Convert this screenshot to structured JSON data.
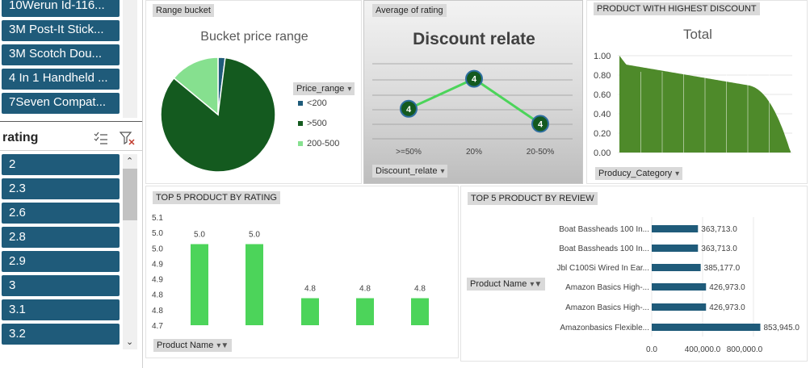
{
  "product_slicer": {
    "items": [
      "10Werun Id-116...",
      "3M Post-It Stick...",
      "3M Scotch Dou...",
      "4 In 1 Handheld ...",
      "7Seven Compat..."
    ]
  },
  "rating_slicer": {
    "title": "rating",
    "items": [
      "2",
      "2.3",
      "2.6",
      "2.8",
      "2.9",
      "3",
      "3.1",
      "3.2"
    ]
  },
  "filters": {
    "range_bucket": "Range bucket",
    "price_range": "Price_range",
    "average_rating": "Average of rating",
    "discount_relate": "Discount_relate",
    "highest_discount": "PRODUCT WITH HIGHEST DISCOUNT",
    "product_category": "Producy_Category",
    "top5_rating": "TOP 5 PRODUCT BY RATING",
    "top5_review": "TOP 5 PRODUCT BY REVIEW",
    "product_name_1": "Product Name",
    "product_name_2": "Product Name"
  },
  "colors": {
    "dark_green": "#145a1f",
    "light_green": "#86e08f",
    "blue": "#1f5b7a",
    "bright_green": "#4cd45a",
    "area_green": "#4e8a2a",
    "line_green": "#4cd45a"
  },
  "chart_data": [
    {
      "type": "pie",
      "title": "Bucket price range",
      "legend_position": "right",
      "slices": [
        {
          "label": "<200",
          "value": 2
        },
        {
          "label": ">500",
          "value": 84
        },
        {
          "label": "200-500",
          "value": 14
        }
      ]
    },
    {
      "type": "line",
      "title": "Discount relate",
      "categories": [
        ">=50%",
        "20%",
        "20-50%"
      ],
      "values": [
        4.0,
        4.2,
        3.9
      ],
      "data_labels": [
        "4",
        "4",
        "4"
      ],
      "grid": true
    },
    {
      "type": "area",
      "title": "Total",
      "ylim": [
        0,
        1.0
      ],
      "yticks": [
        "0.00",
        "0.20",
        "0.40",
        "0.60",
        "0.80",
        "1.00"
      ],
      "grid": true
    },
    {
      "type": "bar",
      "categories": [
        "",
        "",
        "",
        "",
        ""
      ],
      "values": [
        5.0,
        5.0,
        4.8,
        4.8,
        4.8
      ],
      "data_labels": [
        "5.0",
        "5.0",
        "4.8",
        "4.8",
        "4.8"
      ],
      "ylim": [
        4.7,
        5.1
      ],
      "yticks": [
        "4.7",
        "4.8",
        "4.8",
        "4.9",
        "4.9",
        "5.0",
        "5.0",
        "5.1"
      ]
    },
    {
      "type": "bar",
      "orientation": "horizontal",
      "categories": [
        "Boat Bassheads 100 In...",
        "Boat Bassheads 100 In...",
        "Jbl C100Si Wired In Ear...",
        "Amazon Basics High-...",
        "Amazon Basics High-...",
        "Amazonbasics Flexible..."
      ],
      "values": [
        363713.0,
        363713.0,
        385177.0,
        426973.0,
        426973.0,
        853945.0
      ],
      "data_labels": [
        "363,713.0",
        "363,713.0",
        "385,177.0",
        "426,973.0",
        "426,973.0",
        "853,945.0"
      ],
      "xlim": [
        0,
        1000000
      ],
      "xticks": [
        "0.0",
        "400,000.0",
        "800,000.0"
      ]
    }
  ]
}
